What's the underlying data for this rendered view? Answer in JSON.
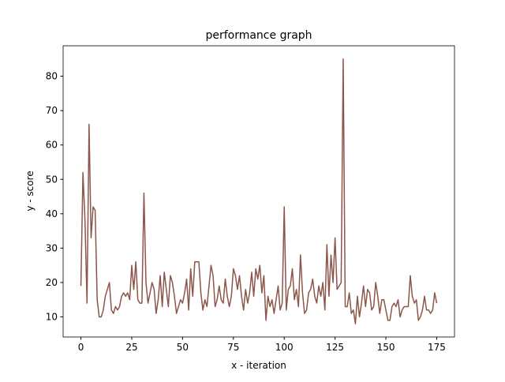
{
  "chart_data": {
    "type": "line",
    "title": "performance graph",
    "x_label": "x - iteration",
    "y_label": "y - score",
    "x": [
      0,
      1,
      2,
      3,
      4,
      5,
      6,
      7,
      8,
      9,
      10,
      11,
      12,
      13,
      14,
      15,
      16,
      17,
      18,
      19,
      20,
      21,
      22,
      23,
      24,
      25,
      26,
      27,
      28,
      29,
      30,
      31,
      32,
      33,
      34,
      35,
      36,
      37,
      38,
      39,
      40,
      41,
      42,
      43,
      44,
      45,
      46,
      47,
      48,
      49,
      50,
      51,
      52,
      53,
      54,
      55,
      56,
      57,
      58,
      59,
      60,
      61,
      62,
      63,
      64,
      65,
      66,
      67,
      68,
      69,
      70,
      71,
      72,
      73,
      74,
      75,
      76,
      77,
      78,
      79,
      80,
      81,
      82,
      83,
      84,
      85,
      86,
      87,
      88,
      89,
      90,
      91,
      92,
      93,
      94,
      95,
      96,
      97,
      98,
      99,
      100,
      101,
      102,
      103,
      104,
      105,
      106,
      107,
      108,
      109,
      110,
      111,
      112,
      113,
      114,
      115,
      116,
      117,
      118,
      119,
      120,
      121,
      122,
      123,
      124,
      125,
      126,
      127,
      128,
      129,
      130,
      131,
      132,
      133,
      134,
      135,
      136,
      137,
      138,
      139,
      140,
      141,
      142,
      143,
      144,
      145,
      146,
      147,
      148,
      149,
      150,
      151,
      152,
      153,
      154,
      155,
      156,
      157,
      158,
      159,
      160,
      161,
      162,
      163,
      164,
      165,
      166,
      167,
      168,
      169,
      170,
      171,
      172,
      173,
      174,
      175
    ],
    "series": [
      {
        "color": "#8c564b",
        "values": [
          19,
          52,
          38,
          14,
          66,
          33,
          42,
          41,
          15,
          10,
          10,
          12,
          16,
          18,
          20,
          12,
          11,
          13,
          12,
          13,
          16,
          17,
          16,
          17,
          15,
          25,
          18,
          26,
          15,
          14,
          14,
          46,
          20,
          14,
          17,
          20,
          18,
          11,
          15,
          22,
          13,
          23,
          18,
          13,
          22,
          20,
          16,
          11,
          13,
          15,
          14,
          17,
          21,
          12,
          24,
          16,
          26,
          26,
          26,
          17,
          12,
          15,
          13,
          19,
          25,
          22,
          13,
          15,
          19,
          15,
          14,
          21,
          16,
          13,
          16,
          24,
          22,
          18,
          22,
          16,
          12,
          18,
          14,
          17,
          23,
          16,
          24,
          21,
          25,
          17,
          22,
          9,
          16,
          13,
          15,
          11,
          15,
          19,
          12,
          14,
          42,
          12,
          18,
          19,
          24,
          15,
          18,
          13,
          28,
          17,
          11,
          12,
          17,
          18,
          21,
          16,
          14,
          19,
          16,
          20,
          12,
          31,
          16,
          28,
          20,
          33,
          18,
          19,
          20,
          85,
          13,
          13,
          17,
          11,
          12,
          8,
          16,
          10,
          14,
          19,
          13,
          18,
          17,
          12,
          13,
          20,
          16,
          11,
          15,
          15,
          12,
          9,
          9,
          13,
          14,
          13,
          15,
          10,
          12,
          13,
          13,
          13,
          22,
          16,
          14,
          15,
          9,
          10,
          12,
          16,
          12,
          12,
          11,
          12,
          17,
          14
        ]
      }
    ],
    "xlim": [
      -8.75,
      183.75
    ],
    "ylim": [
      4.15,
      88.85
    ],
    "xticks": [
      0,
      25,
      50,
      75,
      100,
      125,
      150,
      175
    ],
    "yticks": [
      10,
      20,
      30,
      40,
      50,
      60,
      70,
      80
    ]
  }
}
